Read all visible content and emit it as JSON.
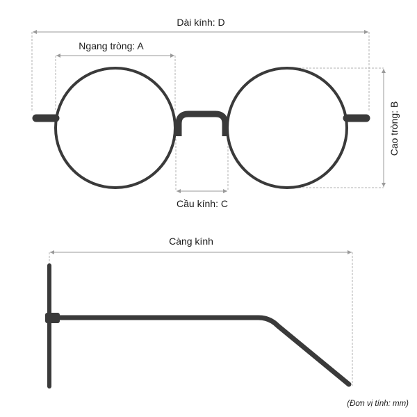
{
  "labels": {
    "total_width": "Dài kính: D",
    "lens_width": "Ngang tròng: A",
    "lens_height": "Cao tròng: B",
    "bridge": "Cầu kính: C",
    "temple_length": "Càng kính",
    "unit_note": "(Đơn vị tính: mm)"
  },
  "colors": {
    "frame": "#3a3a3a",
    "dimension_line": "#b0b0b0",
    "text": "#1a1a1a"
  }
}
